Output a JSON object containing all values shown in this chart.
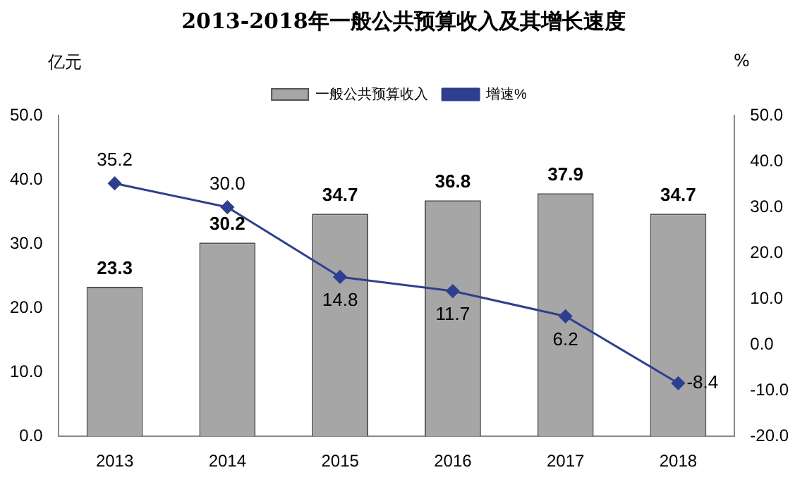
{
  "chart_data": {
    "type": "bar",
    "title": "2013-2018年一般公共预算收入及其增长速度",
    "categories": [
      "2013",
      "2014",
      "2015",
      "2016",
      "2017",
      "2018"
    ],
    "series": [
      {
        "name": "一般公共预算收入",
        "color": "#a6a6a6",
        "values": [
          23.3,
          30.2,
          34.7,
          36.8,
          37.9,
          34.7
        ],
        "value_labels": [
          "23.3",
          "30.2",
          "34.7",
          "36.8",
          "37.9",
          "34.7"
        ]
      },
      {
        "name": "增速%",
        "type": "line",
        "axis": "y2",
        "color": "#2e3f8f",
        "values": [
          35.2,
          30.0,
          14.8,
          11.7,
          6.2,
          -8.4
        ],
        "value_labels": [
          "35.2",
          "30.0",
          "14.8",
          "11.7",
          "6.2",
          "-8.4"
        ]
      }
    ],
    "ylabel": "亿元",
    "y2label": "%",
    "ylim": [
      0,
      50
    ],
    "yticks": [
      {
        "value": 0,
        "label": "0.0"
      },
      {
        "value": 10,
        "label": "10.0"
      },
      {
        "value": 20,
        "label": "20.0"
      },
      {
        "value": 30,
        "label": "30.0"
      },
      {
        "value": 40,
        "label": "40.0"
      },
      {
        "value": 50,
        "label": "50.0"
      }
    ],
    "y2lim": [
      -20,
      50
    ],
    "y2ticks": [
      {
        "value": -20,
        "label": "-20.0"
      },
      {
        "value": -10,
        "label": "-10.0"
      },
      {
        "value": 0,
        "label": "0.0"
      },
      {
        "value": 10,
        "label": "10.0"
      },
      {
        "value": 20,
        "label": "20.0"
      },
      {
        "value": 30,
        "label": "30.0"
      },
      {
        "value": 40,
        "label": "40.0"
      },
      {
        "value": 50,
        "label": "50.0"
      }
    ],
    "legend": "top",
    "marker": "diamond",
    "grid": false
  }
}
